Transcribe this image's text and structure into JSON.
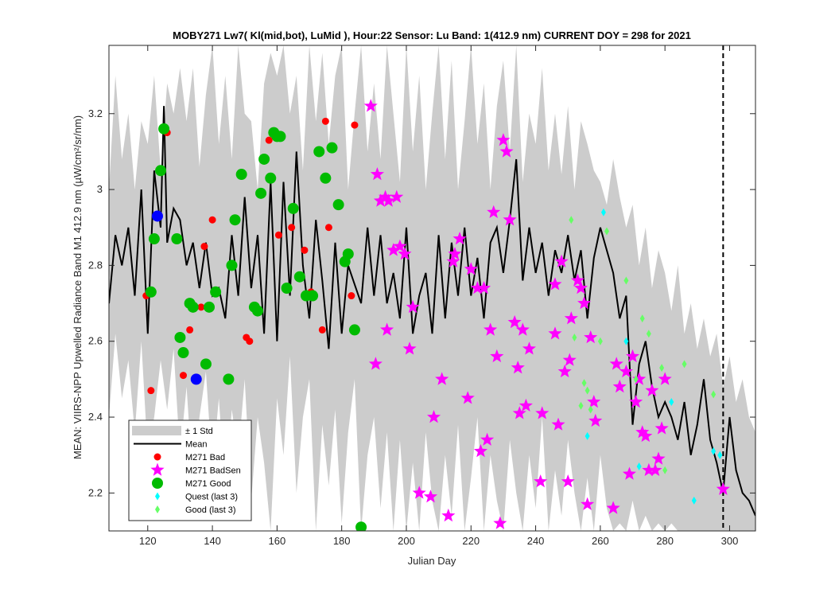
{
  "chart_data": {
    "type": "scatter",
    "title": "MOBY271   Lw7( Kl(mid,bot), LuMid ),    Hour:22 Sensor: Lu Band: 1(412.9 nm)    CURRENT DOY = 298 for 2021",
    "xlabel": "Julian Day",
    "ylabel": "MEAN: VIIRS-NPP Upwelled Radiance Band M1 412.9 nm (µW/cm²/sr/nm)",
    "xlim": [
      108,
      308
    ],
    "ylim": [
      2.1,
      3.38
    ],
    "xticks": [
      120,
      140,
      160,
      180,
      200,
      220,
      240,
      260,
      280,
      300
    ],
    "yticks": [
      2.2,
      2.4,
      2.6,
      2.8,
      3.0,
      3.2
    ],
    "ytick_labels": [
      "2.2",
      "2.4",
      "2.6",
      "2.8",
      "3",
      "3.2"
    ],
    "current_doy": 298,
    "legend_position": "bottom-left",
    "colors": {
      "std_band": "#cccccc",
      "mean": "#000000",
      "bad": "#ff0000",
      "badsen": "#ff00ff",
      "good": "#00bb00",
      "quest": "#00ffff",
      "good_last3": "#66ff66",
      "blue": "#0000ff"
    },
    "legend": [
      {
        "label": "± 1 Std",
        "marker": "band"
      },
      {
        "label": "Mean",
        "marker": "line"
      },
      {
        "label": "M271 Bad",
        "marker": "dot"
      },
      {
        "label": "M271 BadSen",
        "marker": "star"
      },
      {
        "label": "M271 Good",
        "marker": "bigdot"
      },
      {
        "label": "Quest (last 3)",
        "marker": "diamond-cyan"
      },
      {
        "label": "Good (last 3)",
        "marker": "diamond-green"
      }
    ],
    "mean": {
      "x": [
        108,
        110,
        112,
        114,
        116,
        118,
        120,
        122,
        124,
        125,
        126,
        128,
        130,
        132,
        134,
        136,
        138,
        140,
        142,
        144,
        146,
        148,
        150,
        152,
        154,
        156,
        158,
        160,
        162,
        164,
        166,
        168,
        170,
        172,
        174,
        176,
        178,
        180,
        182,
        184,
        186,
        188,
        190,
        192,
        194,
        196,
        198,
        200,
        202,
        204,
        206,
        208,
        210,
        212,
        214,
        216,
        218,
        220,
        222,
        224,
        226,
        228,
        230,
        232,
        234,
        236,
        238,
        240,
        242,
        244,
        246,
        248,
        250,
        252,
        254,
        256,
        258,
        260,
        262,
        264,
        266,
        268,
        270,
        272,
        274,
        276,
        278,
        280,
        282,
        284,
        286,
        288,
        290,
        292,
        294,
        296,
        298,
        300,
        302,
        304,
        306,
        308
      ],
      "y": [
        2.7,
        2.88,
        2.8,
        2.9,
        2.72,
        3.0,
        2.62,
        3.05,
        2.9,
        3.22,
        2.86,
        2.95,
        2.92,
        2.8,
        2.86,
        2.74,
        2.86,
        2.72,
        2.74,
        2.66,
        2.88,
        2.72,
        2.98,
        2.74,
        2.88,
        2.62,
        3.02,
        2.6,
        3.02,
        2.72,
        3.1,
        2.8,
        2.66,
        2.92,
        2.76,
        2.58,
        2.86,
        2.62,
        2.8,
        2.75,
        2.7,
        2.9,
        2.72,
        2.88,
        2.7,
        2.78,
        2.66,
        2.9,
        2.62,
        2.72,
        2.78,
        2.62,
        2.88,
        2.66,
        2.86,
        2.72,
        2.9,
        2.72,
        2.82,
        2.66,
        2.86,
        2.9,
        2.78,
        2.92,
        3.08,
        2.76,
        2.9,
        2.78,
        2.86,
        2.72,
        2.84,
        2.78,
        2.88,
        2.76,
        2.84,
        2.66,
        2.82,
        2.9,
        2.84,
        2.78,
        2.66,
        2.72,
        2.38,
        2.54,
        2.6,
        2.48,
        2.4,
        2.44,
        2.4,
        2.34,
        2.44,
        2.3,
        2.38,
        2.5,
        2.34,
        2.28,
        2.2,
        2.4,
        2.26,
        2.2,
        2.18,
        2.14
      ]
    },
    "std_band": {
      "x": [
        108,
        110,
        112,
        114,
        116,
        118,
        120,
        122,
        124,
        126,
        128,
        130,
        132,
        134,
        136,
        138,
        140,
        142,
        144,
        146,
        148,
        150,
        152,
        154,
        156,
        158,
        160,
        162,
        164,
        166,
        168,
        170,
        172,
        174,
        176,
        178,
        180,
        182,
        184,
        186,
        188,
        190,
        192,
        194,
        196,
        198,
        200,
        202,
        204,
        206,
        208,
        210,
        212,
        214,
        216,
        218,
        220,
        222,
        224,
        226,
        228,
        230,
        232,
        234,
        236,
        238,
        240,
        242,
        244,
        246,
        248,
        250,
        252,
        254,
        256,
        258,
        260,
        262,
        264,
        266,
        268,
        270,
        272,
        274,
        276,
        278,
        280,
        282,
        284,
        286,
        288,
        290,
        292,
        294,
        296,
        298,
        300,
        302,
        304,
        306,
        308
      ],
      "upper": [
        3.0,
        3.3,
        3.08,
        3.2,
        3.0,
        3.18,
        3.12,
        3.3,
        3.05,
        3.28,
        3.2,
        3.32,
        3.18,
        3.32,
        3.06,
        3.25,
        3.38,
        3.12,
        3.3,
        3.08,
        3.38,
        3.2,
        3.18,
        3.0,
        3.28,
        3.36,
        3.3,
        3.38,
        3.2,
        3.3,
        3.05,
        3.38,
        3.18,
        3.36,
        3.12,
        3.3,
        3.38,
        3.0,
        3.2,
        3.38,
        3.1,
        3.28,
        3.08,
        3.38,
        3.2,
        3.02,
        3.38,
        3.1,
        3.3,
        3.0,
        3.2,
        3.38,
        3.08,
        3.34,
        3.0,
        3.18,
        3.38,
        3.12,
        3.28,
        3.0,
        3.22,
        3.34,
        3.1,
        3.38,
        3.02,
        3.2,
        3.12,
        3.32,
        3.05,
        3.2,
        3.04,
        3.22,
        3.0,
        3.18,
        3.12,
        3.05,
        3.02,
        2.96,
        3.08,
        2.98,
        2.9,
        2.96,
        2.8,
        2.9,
        2.74,
        2.84,
        2.78,
        2.68,
        2.8,
        2.62,
        2.7,
        2.58,
        2.66,
        2.56,
        2.62,
        2.48,
        2.56,
        2.44,
        2.5,
        2.4,
        2.36
      ],
      "lower": [
        2.4,
        2.62,
        2.45,
        2.55,
        2.36,
        2.6,
        2.3,
        2.4,
        2.55,
        2.42,
        2.58,
        2.3,
        2.48,
        2.22,
        2.4,
        2.52,
        2.26,
        2.45,
        2.2,
        2.42,
        2.3,
        2.5,
        2.18,
        2.4,
        2.28,
        2.1,
        2.45,
        2.3,
        2.56,
        2.2,
        2.4,
        2.5,
        2.1,
        2.38,
        2.22,
        2.42,
        2.12,
        2.36,
        2.5,
        2.1,
        2.3,
        2.4,
        2.16,
        2.36,
        2.1,
        2.34,
        2.1,
        2.28,
        2.1,
        2.36,
        2.18,
        2.1,
        2.3,
        2.14,
        2.38,
        2.1,
        2.24,
        2.4,
        2.1,
        2.3,
        2.18,
        2.1,
        2.34,
        2.2,
        2.1,
        2.3,
        2.16,
        2.4,
        2.1,
        2.26,
        2.14,
        2.34,
        2.2,
        2.1,
        2.24,
        2.1,
        2.3,
        2.16,
        2.1,
        2.12,
        2.1,
        2.18,
        2.1,
        2.14,
        2.1,
        2.12,
        2.1,
        2.12,
        2.1,
        2.1,
        2.1,
        2.1,
        2.1,
        2.1,
        2.1,
        2.1,
        2.1,
        2.1,
        2.1,
        2.1,
        2.1
      ]
    },
    "series": [
      {
        "name": "M271 Bad",
        "marker": "dot",
        "x": [
          119.5,
          121,
          126,
          131,
          133,
          136.5,
          137.5,
          140,
          150.5,
          151.5,
          157.5,
          160.5,
          164.5,
          168.5,
          170.5,
          174,
          175,
          176,
          183,
          184,
          186
        ],
        "y": [
          2.72,
          2.47,
          3.15,
          2.51,
          2.63,
          2.69,
          2.85,
          2.92,
          2.61,
          2.6,
          3.13,
          2.88,
          2.9,
          2.84,
          2.73,
          2.63,
          3.18,
          2.9,
          2.72,
          3.17,
          2.11
        ]
      },
      {
        "name": "M271 BadSen",
        "marker": "star",
        "x": [
          189,
          190.5,
          191,
          192,
          193.5,
          194,
          194.5,
          196,
          197,
          198,
          199.5,
          201,
          202,
          204,
          207.5,
          208.5,
          211,
          213,
          214.5,
          215,
          216.5,
          219,
          220,
          222,
          223,
          224,
          225,
          226,
          227,
          228,
          229,
          230,
          231,
          232,
          233.5,
          234.5,
          235,
          236,
          237,
          238,
          241.5,
          242,
          246,
          246,
          247,
          248,
          249,
          250,
          250.5,
          251,
          253,
          254,
          255,
          256,
          257,
          258,
          258.5,
          264,
          265,
          266,
          268,
          269,
          270,
          271,
          272,
          273,
          274,
          275,
          276,
          277,
          278,
          279,
          280,
          298
        ],
        "y": [
          3.22,
          2.54,
          3.04,
          2.97,
          2.98,
          2.63,
          2.97,
          2.84,
          2.98,
          2.85,
          2.83,
          2.58,
          2.69,
          2.2,
          2.19,
          2.4,
          2.5,
          2.14,
          2.81,
          2.83,
          2.87,
          2.45,
          2.79,
          2.74,
          2.31,
          2.74,
          2.34,
          2.63,
          2.94,
          2.56,
          2.12,
          3.13,
          3.1,
          2.92,
          2.65,
          2.53,
          2.41,
          2.63,
          2.43,
          2.58,
          2.23,
          2.41,
          2.75,
          2.62,
          2.38,
          2.81,
          2.52,
          2.23,
          2.55,
          2.66,
          2.76,
          2.74,
          2.7,
          2.17,
          2.61,
          2.44,
          2.39,
          2.16,
          2.54,
          2.48,
          2.52,
          2.25,
          2.56,
          2.44,
          2.5,
          2.36,
          2.35,
          2.26,
          2.47,
          2.26,
          2.29,
          2.37,
          2.5,
          2.21
        ]
      },
      {
        "name": "M271 Good",
        "marker": "bigdot",
        "x": [
          121,
          122,
          124,
          125,
          129,
          130,
          131,
          133,
          134,
          138,
          139,
          141,
          145,
          146,
          147,
          149,
          153,
          154,
          155,
          156,
          158,
          159,
          160,
          161,
          163,
          165,
          167,
          169,
          171,
          173,
          175,
          177,
          179,
          181,
          182,
          184,
          186
        ],
        "y": [
          2.73,
          2.87,
          3.05,
          3.16,
          2.87,
          2.61,
          2.57,
          2.7,
          2.69,
          2.54,
          2.69,
          2.73,
          2.5,
          2.8,
          2.92,
          3.04,
          2.69,
          2.68,
          2.99,
          3.08,
          3.03,
          3.15,
          3.14,
          3.14,
          2.74,
          2.95,
          2.77,
          2.72,
          2.72,
          3.1,
          3.03,
          3.11,
          2.96,
          2.81,
          2.83,
          2.63,
          2.11
        ]
      },
      {
        "name": "M271 Blue",
        "marker": "bluedot",
        "x": [
          123,
          135
        ],
        "y": [
          2.93,
          2.5
        ]
      },
      {
        "name": "Quest (last 3)",
        "marker": "diamond-cyan",
        "x": [
          256,
          261,
          268,
          272,
          282,
          289,
          295,
          297
        ],
        "y": [
          2.35,
          2.94,
          2.6,
          2.27,
          2.44,
          2.18,
          2.31,
          2.3
        ]
      },
      {
        "name": "Good (last 3)",
        "marker": "diamond-green",
        "x": [
          251,
          252,
          254,
          255,
          256,
          257,
          260,
          262,
          268,
          271,
          273,
          275,
          279,
          280,
          286,
          295
        ],
        "y": [
          2.92,
          2.61,
          2.43,
          2.49,
          2.47,
          2.42,
          2.6,
          2.89,
          2.76,
          2.5,
          2.66,
          2.62,
          2.53,
          2.26,
          2.54,
          2.46
        ]
      }
    ]
  }
}
